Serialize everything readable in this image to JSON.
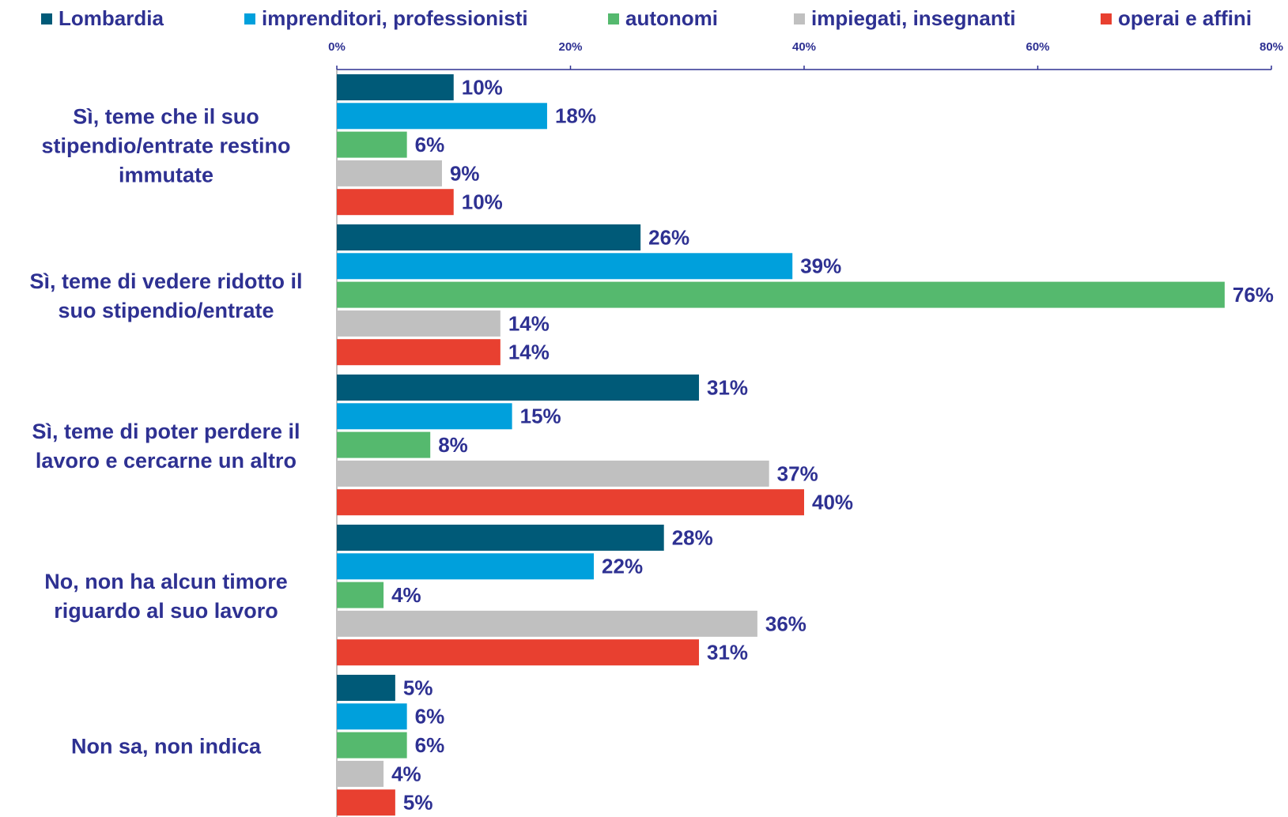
{
  "chart_data": {
    "type": "bar",
    "orientation": "horizontal",
    "categories": [
      "Sì, teme che il suo stipendio/entrate restino immutate",
      "Sì, teme di vedere ridotto il suo stipendio/entrate",
      "Sì, teme di poter perdere il lavoro e cercarne un altro",
      "No, non ha alcun timore riguardo al suo lavoro",
      "Non sa, non indica"
    ],
    "series": [
      {
        "name": "Lombardia",
        "color": "#005a78",
        "values": [
          10,
          26,
          31,
          28,
          5
        ],
        "value_labels": [
          "10%",
          "26%",
          "31%",
          "28%",
          "5%"
        ]
      },
      {
        "name": "imprenditori, professionisti",
        "color": "#00a0dc",
        "values": [
          18,
          39,
          15,
          22,
          6
        ],
        "value_labels": [
          "18%",
          "39%",
          "15%",
          "22%",
          "6%"
        ]
      },
      {
        "name": "autonomi",
        "color": "#55b96e",
        "values": [
          6,
          76,
          8,
          4,
          6
        ],
        "value_labels": [
          "6%",
          "76%",
          "8%",
          "4%",
          "6%"
        ]
      },
      {
        "name": "impiegati, insegnanti",
        "color": "#c0c0c0",
        "values": [
          9,
          14,
          37,
          36,
          4
        ],
        "value_labels": [
          "9%",
          "14%",
          "37%",
          "36%",
          "4%"
        ]
      },
      {
        "name": "operai e affini",
        "color": "#e84030",
        "values": [
          10,
          14,
          40,
          31,
          5
        ],
        "value_labels": [
          "10%",
          "14%",
          "40%",
          "31%",
          "5%"
        ]
      }
    ],
    "xlim": [
      0,
      80
    ],
    "xticks": [
      {
        "value": 0,
        "label": "0%"
      },
      {
        "value": 20,
        "label": "20%"
      },
      {
        "value": 40,
        "label": "40%"
      },
      {
        "value": 60,
        "label": "60%"
      },
      {
        "value": 80,
        "label": "80%"
      }
    ],
    "legend": "top"
  }
}
